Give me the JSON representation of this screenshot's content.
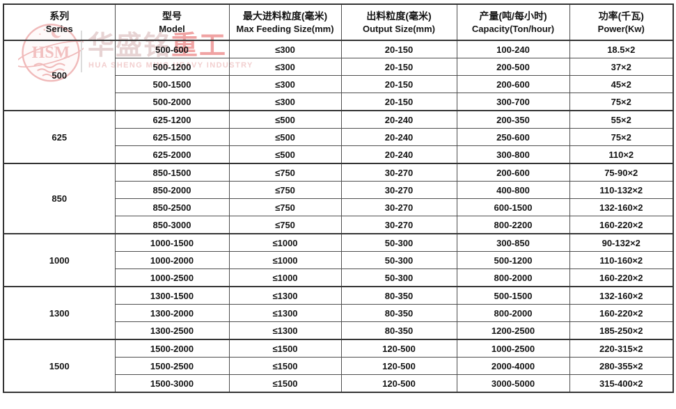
{
  "watermark": {
    "emblem_text": "HSM",
    "brand_cn_light": "华盛铭",
    "brand_cn_accent": "重工",
    "brand_en": "HUA SHENG MING HEAVY INDUSTRY",
    "colors": {
      "emblem_stroke": "#f0b9b9",
      "cn_light": "#e7d3d3",
      "cn_accent": "#f0a3a3",
      "en_text": "#f2cfcf"
    }
  },
  "table": {
    "border_color": "#4d4d4d",
    "strong_border_color": "#333333",
    "text_color": "#141414",
    "columns": [
      {
        "cn": "系列",
        "en": "Series"
      },
      {
        "cn": "型号",
        "en": "Model"
      },
      {
        "cn": "最大进料粒度(毫米)",
        "en": "Max Feeding Size(mm)"
      },
      {
        "cn": "出料粒度(毫米)",
        "en": "Output Size(mm)"
      },
      {
        "cn": "产量(吨/每小时)",
        "en": "Capacity(Ton/hour)"
      },
      {
        "cn": "功率(千瓦)",
        "en": "Power(Kw)"
      }
    ],
    "groups": [
      {
        "series": "500",
        "rows": [
          [
            "500-600",
            "≤300",
            "20-150",
            "100-240",
            "18.5×2"
          ],
          [
            "500-1200",
            "≤300",
            "20-150",
            "200-500",
            "37×2"
          ],
          [
            "500-1500",
            "≤300",
            "20-150",
            "200-600",
            "45×2"
          ],
          [
            "500-2000",
            "≤300",
            "20-150",
            "300-700",
            "75×2"
          ]
        ]
      },
      {
        "series": "625",
        "rows": [
          [
            "625-1200",
            "≤500",
            "20-240",
            "200-350",
            "55×2"
          ],
          [
            "625-1500",
            "≤500",
            "20-240",
            "250-600",
            "75×2"
          ],
          [
            "625-2000",
            "≤500",
            "20-240",
            "300-800",
            "110×2"
          ]
        ]
      },
      {
        "series": "850",
        "rows": [
          [
            "850-1500",
            "≤750",
            "30-270",
            "200-600",
            "75-90×2"
          ],
          [
            "850-2000",
            "≤750",
            "30-270",
            "400-800",
            "110-132×2"
          ],
          [
            "850-2500",
            "≤750",
            "30-270",
            "600-1500",
            "132-160×2"
          ],
          [
            "850-3000",
            "≤750",
            "30-270",
            "800-2200",
            "160-220×2"
          ]
        ]
      },
      {
        "series": "1000",
        "rows": [
          [
            "1000-1500",
            "≤1000",
            "50-300",
            "300-850",
            "90-132×2"
          ],
          [
            "1000-2000",
            "≤1000",
            "50-300",
            "500-1200",
            "110-160×2"
          ],
          [
            "1000-2500",
            "≤1000",
            "50-300",
            "800-2000",
            "160-220×2"
          ]
        ]
      },
      {
        "series": "1300",
        "rows": [
          [
            "1300-1500",
            "≤1300",
            "80-350",
            "500-1500",
            "132-160×2"
          ],
          [
            "1300-2000",
            "≤1300",
            "80-350",
            "800-2000",
            "160-220×2"
          ],
          [
            "1300-2500",
            "≤1300",
            "80-350",
            "1200-2500",
            "185-250×2"
          ]
        ]
      },
      {
        "series": "1500",
        "rows": [
          [
            "1500-2000",
            "≤1500",
            "120-500",
            "1000-2500",
            "220-315×2"
          ],
          [
            "1500-2500",
            "≤1500",
            "120-500",
            "2000-4000",
            "280-355×2"
          ],
          [
            "1500-3000",
            "≤1500",
            "120-500",
            "3000-5000",
            "315-400×2"
          ]
        ]
      }
    ]
  }
}
